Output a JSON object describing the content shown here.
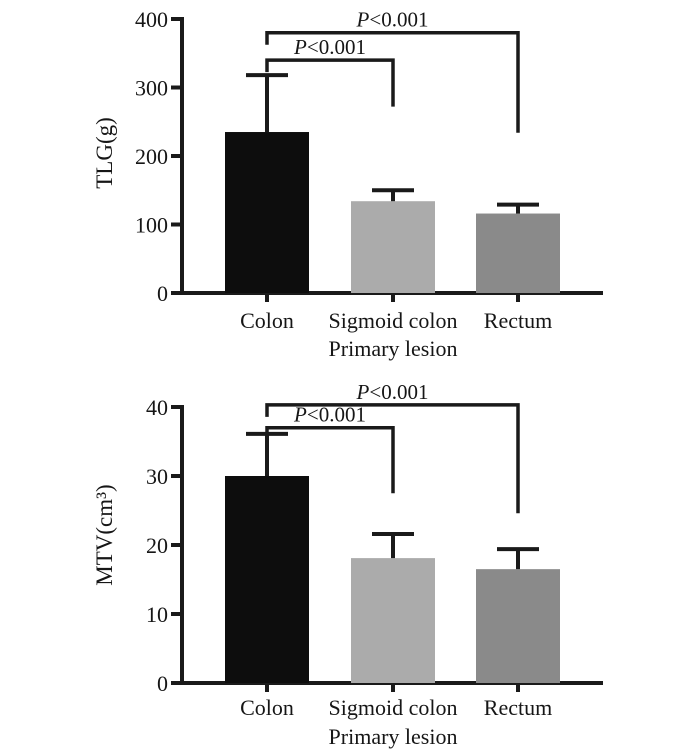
{
  "figure_title": "",
  "canvas_background": "#ffffff",
  "chart_data": [
    {
      "id": "tlg",
      "type": "bar",
      "title": "",
      "ylabel": "TLG(g)",
      "xlabel": "Primary lesion",
      "categories": [
        "Colon",
        "Sigmoid colon",
        "Rectum"
      ],
      "values": [
        235,
        134,
        116
      ],
      "errors": [
        83,
        16,
        13
      ],
      "error_type": "sd-upper",
      "ylim": [
        0,
        400
      ],
      "yticks": [
        0,
        100,
        200,
        300,
        400
      ],
      "grid": "off",
      "legend": "none",
      "bar_colors": [
        "#0d0d0d",
        "#ababab",
        "#8a8a8a"
      ],
      "line_color": "#1a1a1a",
      "brackets": [
        {
          "label": "P<0.001",
          "from": 0,
          "to": 1,
          "y": 340,
          "drop_to": 272
        },
        {
          "label": "P<0.001",
          "from": 0,
          "to": 2,
          "y": 380,
          "drop_to": 234
        }
      ]
    },
    {
      "id": "mtv",
      "type": "bar",
      "title": "",
      "ylabel": "MTV(cm³)",
      "xlabel": "Primary lesion",
      "categories": [
        "Colon",
        "Sigmoid colon",
        "Rectum"
      ],
      "values": [
        30,
        18.1,
        16.5
      ],
      "errors": [
        6.1,
        3.5,
        2.9
      ],
      "error_type": "sd-upper",
      "ylim": [
        0,
        40
      ],
      "yticks": [
        0,
        10,
        20,
        30,
        40
      ],
      "grid": "off",
      "legend": "none",
      "bar_colors": [
        "#0d0d0d",
        "#ababab",
        "#8a8a8a"
      ],
      "line_color": "#1a1a1a",
      "brackets": [
        {
          "label": "P<0.001",
          "from": 0,
          "to": 1,
          "y": 37,
          "drop_to": 27.5
        },
        {
          "label": "P<0.001",
          "from": 0,
          "to": 2,
          "y": 40.3,
          "drop_to": 24.6
        }
      ]
    }
  ]
}
